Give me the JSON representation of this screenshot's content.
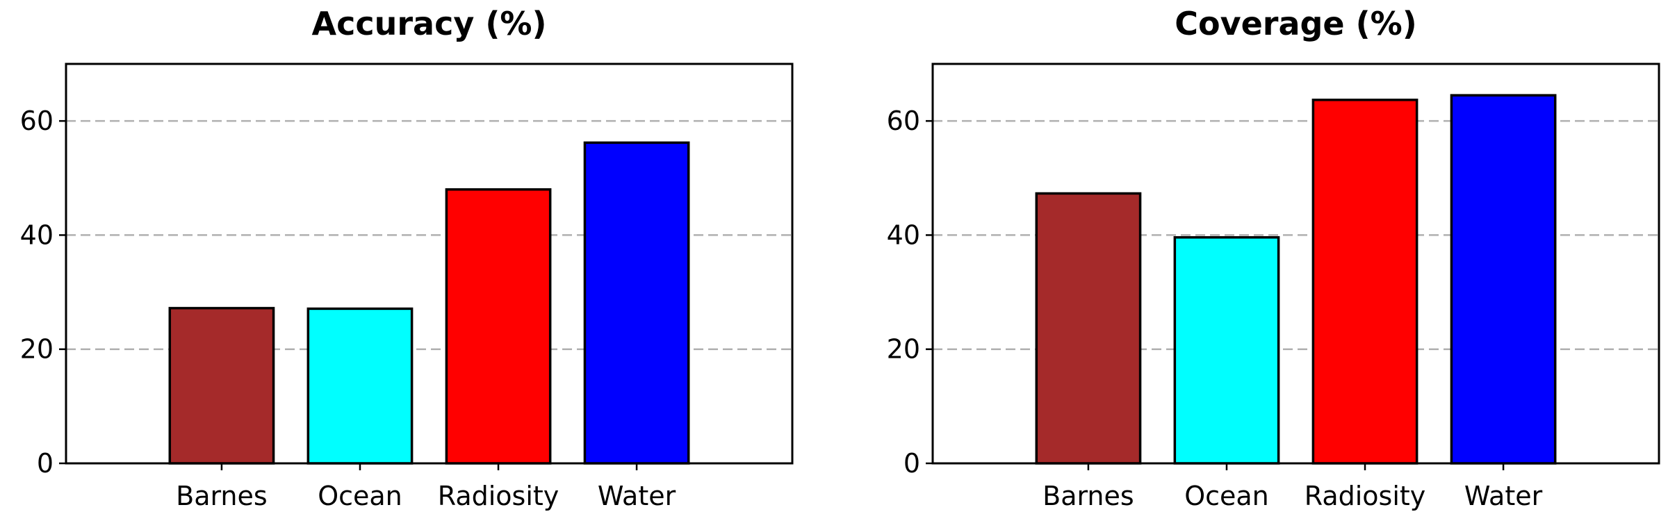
{
  "chart_data": [
    {
      "type": "bar",
      "title": "Accuracy (%)",
      "categories": [
        "Barnes",
        "Ocean",
        "Radiosity",
        "Water"
      ],
      "values": [
        27.2,
        27.1,
        48.0,
        56.2
      ],
      "colors": [
        "#a52a2a",
        "#00ffff",
        "#ff0000",
        "#0000ff"
      ],
      "ylim": [
        0,
        70
      ],
      "yticks": [
        0,
        20,
        40,
        60
      ],
      "grid": "y-dashed",
      "xlabel": "",
      "ylabel": ""
    },
    {
      "type": "bar",
      "title": "Coverage (%)",
      "categories": [
        "Barnes",
        "Ocean",
        "Radiosity",
        "Water"
      ],
      "values": [
        47.3,
        39.6,
        63.7,
        64.5
      ],
      "colors": [
        "#a52a2a",
        "#00ffff",
        "#ff0000",
        "#0000ff"
      ],
      "ylim": [
        0,
        70
      ],
      "yticks": [
        0,
        20,
        40,
        60
      ],
      "grid": "y-dashed",
      "xlabel": "",
      "ylabel": ""
    }
  ]
}
